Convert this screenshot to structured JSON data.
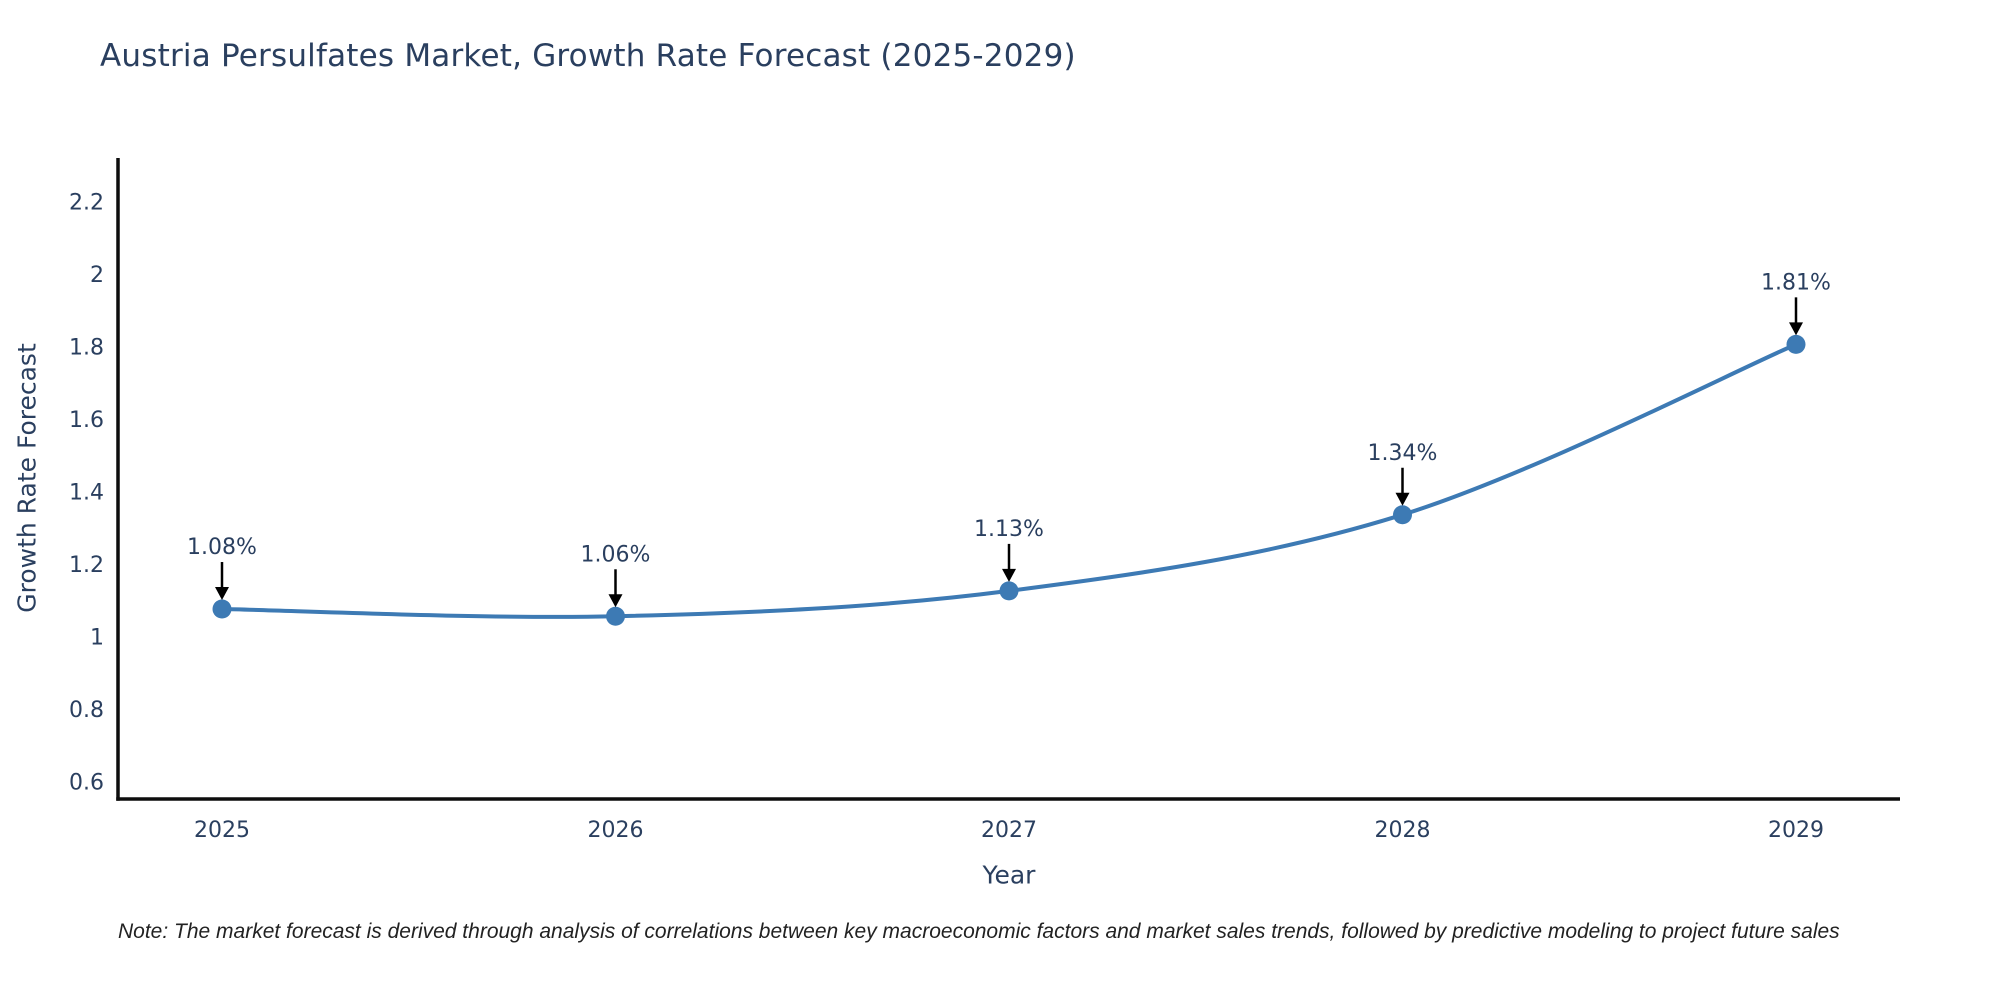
{
  "page": {
    "title": "Austria Persulfates Market, Growth Rate Forecast (2025-2029)",
    "footnote": "Note: The market forecast is derived through analysis of correlations between key macroeconomic factors and market sales trends, followed by predictive modeling to project future sales"
  },
  "chart_data": {
    "type": "line",
    "title": "Austria Persulfates Market, Growth Rate Forecast (2025-2029)",
    "xlabel": "Year",
    "ylabel": "Growth Rate Forecast",
    "categories": [
      "2025",
      "2026",
      "2027",
      "2028",
      "2029"
    ],
    "values": [
      1.08,
      1.06,
      1.13,
      1.34,
      1.81
    ],
    "point_labels": [
      "1.08%",
      "1.06%",
      "1.13%",
      "1.34%",
      "1.81%"
    ],
    "yticks": [
      "0.6",
      "0.8",
      "1",
      "1.2",
      "1.4",
      "1.6",
      "1.8",
      "2",
      "2.2"
    ],
    "ylim": [
      0.556,
      2.324
    ],
    "grid": false,
    "legend": false,
    "line_shape": "spline",
    "annotation_style": "value label with downward black arrow above each point",
    "colors": {
      "line": "#3d7ab4",
      "marker": "#3d7ab4",
      "arrow": "#000000",
      "axis": "#0d0d0d",
      "title_text": "#2a3f5f",
      "tick_text": "#2a3f5f",
      "note_text": "#222222"
    }
  }
}
